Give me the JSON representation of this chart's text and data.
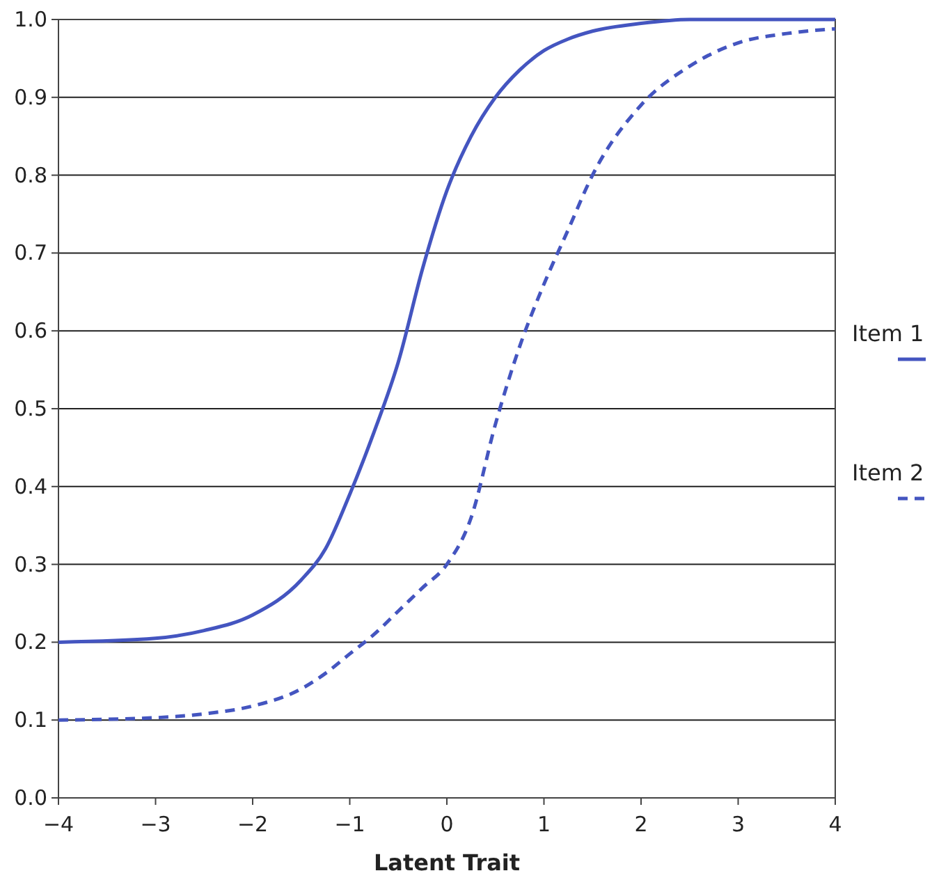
{
  "chart_data": {
    "type": "line",
    "xlabel": "Latent Trait",
    "x": [
      -4,
      -3,
      -2.5,
      -2,
      -1.5,
      -1.25,
      -1,
      -0.75,
      -0.5,
      -0.25,
      0,
      0.25,
      0.5,
      0.75,
      1,
      1.25,
      1.5,
      2,
      2.5,
      3,
      3.5,
      4
    ],
    "series": [
      {
        "name": "Item 1",
        "color": "#4455c0",
        "line_style": "solid",
        "values": [
          0.2,
          0.205,
          0.215,
          0.235,
          0.28,
          0.32,
          0.39,
          0.47,
          0.56,
          0.68,
          0.78,
          0.85,
          0.9,
          0.935,
          0.96,
          0.975,
          0.985,
          0.995,
          1.0,
          1.0,
          1.0,
          1.0
        ]
      },
      {
        "name": "Item 2",
        "color": "#4455c0",
        "line_style": "dashed",
        "values": [
          0.1,
          0.103,
          0.108,
          0.118,
          0.14,
          0.16,
          0.185,
          0.21,
          0.24,
          0.27,
          0.3,
          0.36,
          0.48,
          0.58,
          0.66,
          0.73,
          0.8,
          0.89,
          0.94,
          0.97,
          0.982,
          0.988
        ]
      }
    ],
    "xlim": [
      -4,
      4
    ],
    "xticks": [
      {
        "value": -4,
        "label": "−4"
      },
      {
        "value": -3,
        "label": "−3"
      },
      {
        "value": -2,
        "label": "−2"
      },
      {
        "value": -1,
        "label": "−1"
      },
      0,
      1,
      2,
      3,
      4
    ],
    "ylim": [
      0,
      1
    ],
    "yticks": [
      {
        "value": 0,
        "label": "0.0"
      },
      0.1,
      0.2,
      0.3,
      0.4,
      0.5,
      0.6,
      0.7,
      0.8,
      0.9,
      {
        "value": 1,
        "label": "1.0"
      }
    ],
    "grid": "y",
    "legend": "right",
    "marker": "none"
  }
}
